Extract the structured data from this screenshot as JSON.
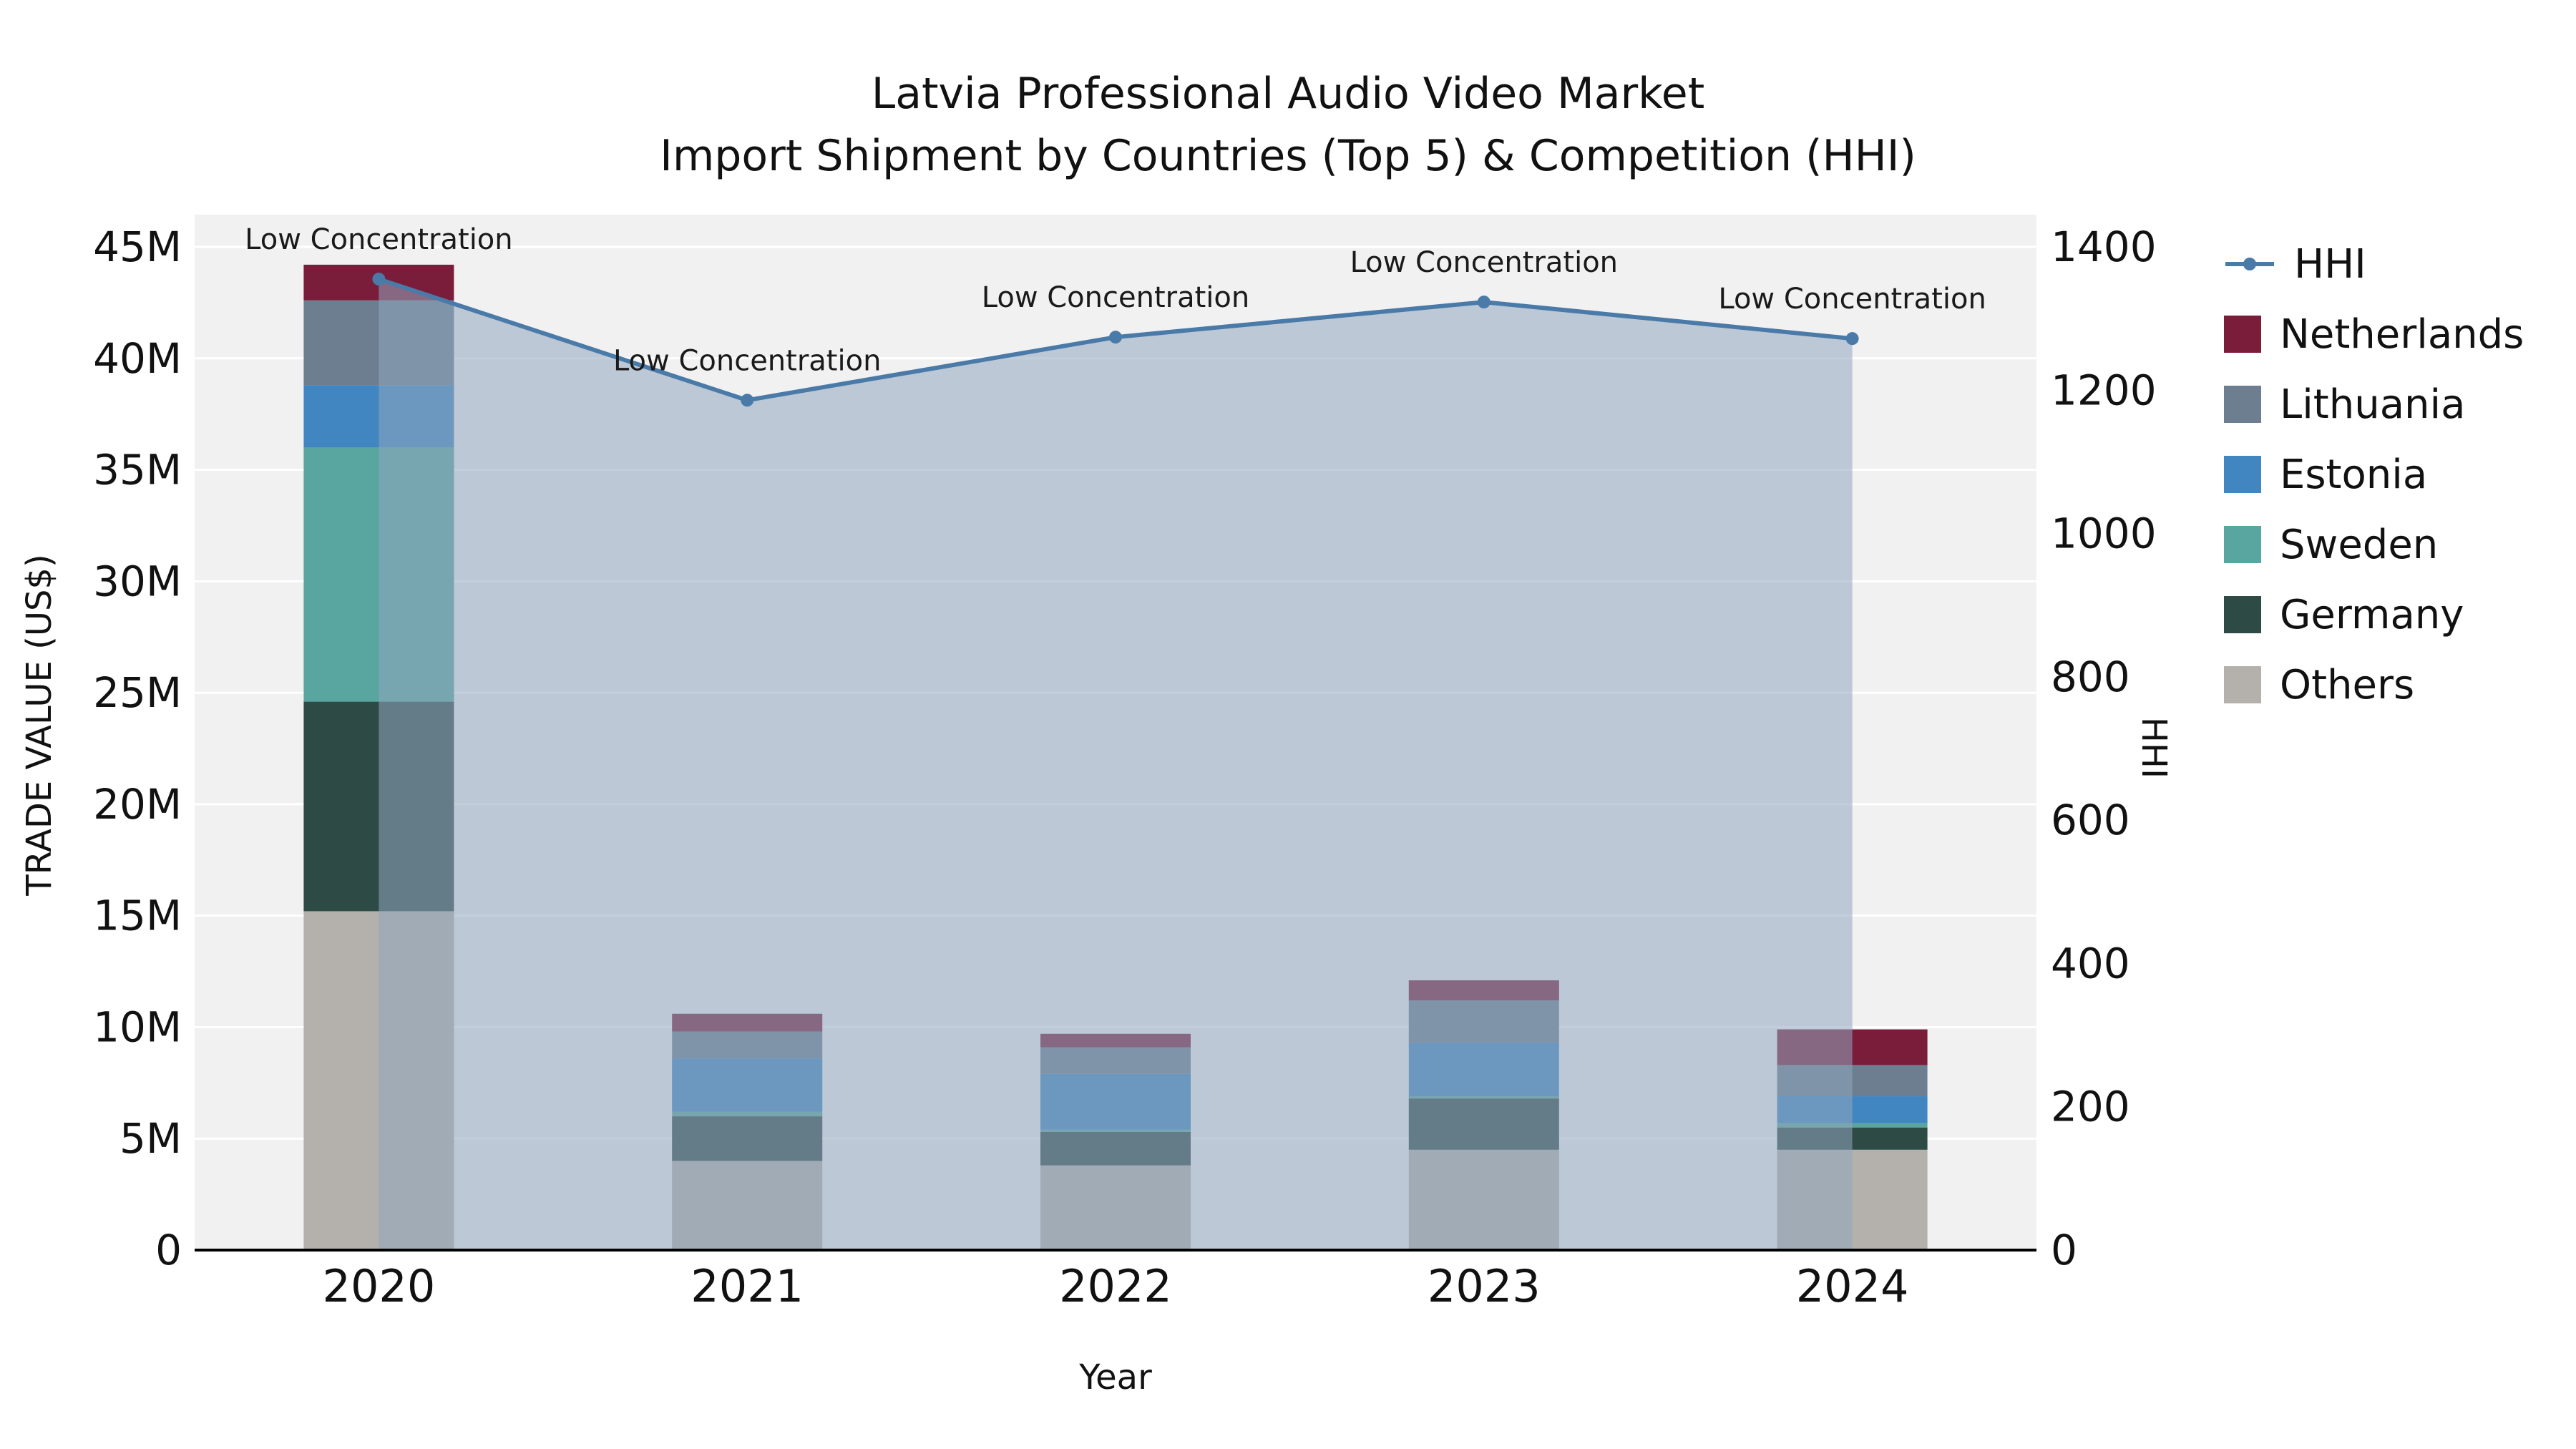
{
  "chart_data": {
    "type": "stacked-bar+line",
    "title": "Latvia Professional Audio Video Market",
    "subtitle": "Import Shipment by Countries (Top 5) & Competition (HHI)",
    "xlabel": "Year",
    "ylabel_left": "TRADE VALUE (US$)",
    "ylabel_right": "HHI",
    "categories": [
      "2020",
      "2021",
      "2022",
      "2023",
      "2024"
    ],
    "left_axis": {
      "max": 45,
      "ticks": [
        0,
        5,
        10,
        15,
        20,
        25,
        30,
        35,
        40,
        45
      ],
      "tick_labels": [
        "0",
        "5M",
        "10M",
        "15M",
        "20M",
        "25M",
        "30M",
        "35M",
        "40M",
        "45M"
      ],
      "unit": "M US$"
    },
    "right_axis": {
      "max": 1400,
      "ticks": [
        0,
        200,
        400,
        600,
        800,
        1000,
        1200,
        1400
      ],
      "tick_labels": [
        "0",
        "200",
        "400",
        "600",
        "800",
        "1000",
        "1200",
        "1400"
      ]
    },
    "bar_series": [
      {
        "name": "Others",
        "color": "#b4b1ac",
        "values": [
          15.2,
          4.0,
          3.8,
          4.5,
          4.5
        ]
      },
      {
        "name": "Germany",
        "color": "#2d4a45",
        "values": [
          9.4,
          2.0,
          1.5,
          2.3,
          1.0
        ]
      },
      {
        "name": "Sweden",
        "color": "#59a5a0",
        "values": [
          11.4,
          0.2,
          0.1,
          0.1,
          0.2
        ]
      },
      {
        "name": "Estonia",
        "color": "#4186c0",
        "values": [
          2.8,
          2.4,
          2.5,
          2.4,
          1.2
        ]
      },
      {
        "name": "Lithuania",
        "color": "#6d7e91",
        "values": [
          3.8,
          1.2,
          1.2,
          1.9,
          1.4
        ]
      },
      {
        "name": "Netherlands",
        "color": "#7a1d3b",
        "values": [
          1.6,
          0.8,
          0.6,
          0.9,
          1.6
        ]
      }
    ],
    "line_series": {
      "name": "HHI",
      "color": "#4a7aa8",
      "marker": "circle",
      "fill_color": "#8fa5bd",
      "fill_opacity": 0.55,
      "values": [
        1355,
        1186,
        1274,
        1323,
        1272
      ]
    },
    "annotations": [
      "Low Concentration",
      "Low Concentration",
      "Low Concentration",
      "Low Concentration",
      "Low Concentration"
    ],
    "legend": [
      {
        "label": "HHI",
        "type": "line",
        "color": "#4a7aa8"
      },
      {
        "label": "Netherlands",
        "type": "swatch",
        "color": "#7a1d3b"
      },
      {
        "label": "Lithuania",
        "type": "swatch",
        "color": "#6d7e91"
      },
      {
        "label": "Estonia",
        "type": "swatch",
        "color": "#4186c0"
      },
      {
        "label": "Sweden",
        "type": "swatch",
        "color": "#59a5a0"
      },
      {
        "label": "Germany",
        "type": "swatch",
        "color": "#2d4a45"
      },
      {
        "label": "Others",
        "type": "swatch",
        "color": "#b4b1ac"
      }
    ],
    "style": {
      "plot_bg": "#f1f1f2",
      "gridline_color": "#ffffff",
      "axis_line_color": "#000000",
      "text_color": "#111111"
    }
  }
}
